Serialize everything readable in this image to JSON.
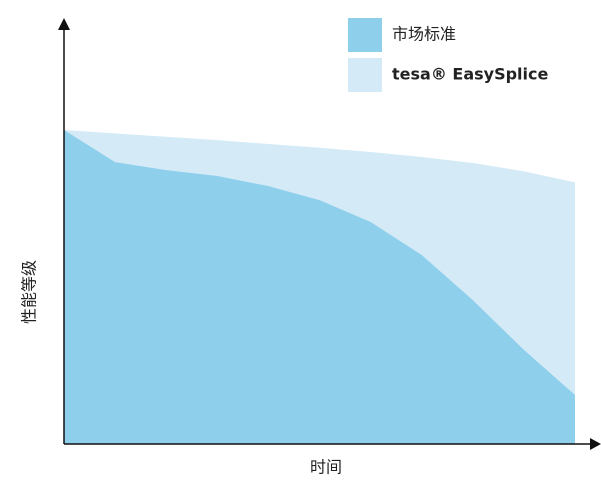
{
  "chart_data": {
    "type": "area",
    "x_label": "时间",
    "y_label": "性能等级",
    "x": [
      0,
      10,
      20,
      30,
      40,
      50,
      60,
      70,
      80,
      90,
      100
    ],
    "xlim": [
      0,
      100
    ],
    "ylim": [
      0,
      100
    ],
    "series": [
      {
        "name": "市场标准",
        "color": "#8ecfec",
        "values": [
          74.4,
          66.8,
          64.9,
          63.5,
          61.1,
          57.8,
          52.6,
          44.8,
          34.1,
          22.3,
          11.6
        ]
      },
      {
        "name": "tesa® EasySplice",
        "color": "#d4eaf7",
        "values": [
          74.4,
          73.6,
          72.8,
          72.0,
          71.1,
          70.2,
          69.2,
          68.0,
          66.6,
          64.6,
          62.0
        ]
      }
    ]
  }
}
